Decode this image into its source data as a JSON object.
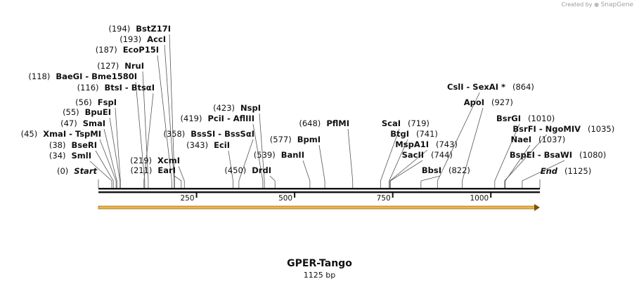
{
  "credit": {
    "prefix": "Created by",
    "brand": "SnapGene"
  },
  "map": {
    "name": "GPER-Tango",
    "length_label": "1125 bp",
    "length": 1125,
    "ticks": [
      250,
      500,
      750,
      1000
    ],
    "feature_color": "#f2b445",
    "sites": [
      {
        "name": "Start",
        "pos": 0,
        "kind": "start",
        "pos_label": "(0)"
      },
      {
        "name": "SmlI",
        "pos": 34,
        "pos_label": "(34)"
      },
      {
        "name": "BseRI",
        "pos": 38,
        "pos_label": "(38)"
      },
      {
        "name": "XmaI - TspMI",
        "pos": 45,
        "pos_label": "(45)"
      },
      {
        "name": "SmaI",
        "pos": 47,
        "pos_label": "(47)"
      },
      {
        "name": "BpuEI",
        "pos": 55,
        "pos_label": "(55)"
      },
      {
        "name": "FspI",
        "pos": 56,
        "pos_label": "(56)"
      },
      {
        "name": "BtsI - BtsαI",
        "pos": 116,
        "pos_label": "(116)"
      },
      {
        "name": "BaeGI - Bme1580I",
        "pos": 118,
        "pos_label": "(118)"
      },
      {
        "name": "NruI",
        "pos": 127,
        "pos_label": "(127)"
      },
      {
        "name": "EcoP15I",
        "pos": 187,
        "pos_label": "(187)"
      },
      {
        "name": "AccI",
        "pos": 193,
        "pos_label": "(193)"
      },
      {
        "name": "BstZ17I",
        "pos": 194,
        "pos_label": "(194)"
      },
      {
        "name": "EarI",
        "pos": 211,
        "pos_label": "(211)"
      },
      {
        "name": "XcmI",
        "pos": 219,
        "pos_label": "(219)"
      },
      {
        "name": "EciI",
        "pos": 343,
        "pos_label": "(343)"
      },
      {
        "name": "BssSI - BssSαI",
        "pos": 358,
        "pos_label": "(358)"
      },
      {
        "name": "PciI - AflIII",
        "pos": 419,
        "pos_label": "(419)"
      },
      {
        "name": "NspI",
        "pos": 423,
        "pos_label": "(423)"
      },
      {
        "name": "DrdI",
        "pos": 450,
        "pos_label": "(450)"
      },
      {
        "name": "BanII",
        "pos": 539,
        "pos_label": "(539)"
      },
      {
        "name": "BpmI",
        "pos": 577,
        "pos_label": "(577)"
      },
      {
        "name": "PflMI",
        "pos": 648,
        "pos_label": "(648)"
      },
      {
        "name": "ScaI",
        "pos": 719,
        "pos_label": "(719)"
      },
      {
        "name": "BtgI",
        "pos": 741,
        "pos_label": "(741)"
      },
      {
        "name": "MspA1I",
        "pos": 743,
        "pos_label": "(743)"
      },
      {
        "name": "SacII",
        "pos": 744,
        "pos_label": "(744)"
      },
      {
        "name": "BbsI",
        "pos": 822,
        "pos_label": "(822)"
      },
      {
        "name": "CslI - SexAI *",
        "pos": 864,
        "pos_label": "(864)"
      },
      {
        "name": "ApoI",
        "pos": 927,
        "pos_label": "(927)"
      },
      {
        "name": "BsrGI",
        "pos": 1010,
        "pos_label": "(1010)"
      },
      {
        "name": "BsrFI - NgoMIV",
        "pos": 1035,
        "pos_label": "(1035)"
      },
      {
        "name": "NaeI",
        "pos": 1037,
        "pos_label": "(1037)"
      },
      {
        "name": "BspEI - BsaWI",
        "pos": 1080,
        "pos_label": "(1080)"
      },
      {
        "name": "End",
        "pos": 1125,
        "kind": "end",
        "pos_label": "(1125)"
      }
    ]
  }
}
